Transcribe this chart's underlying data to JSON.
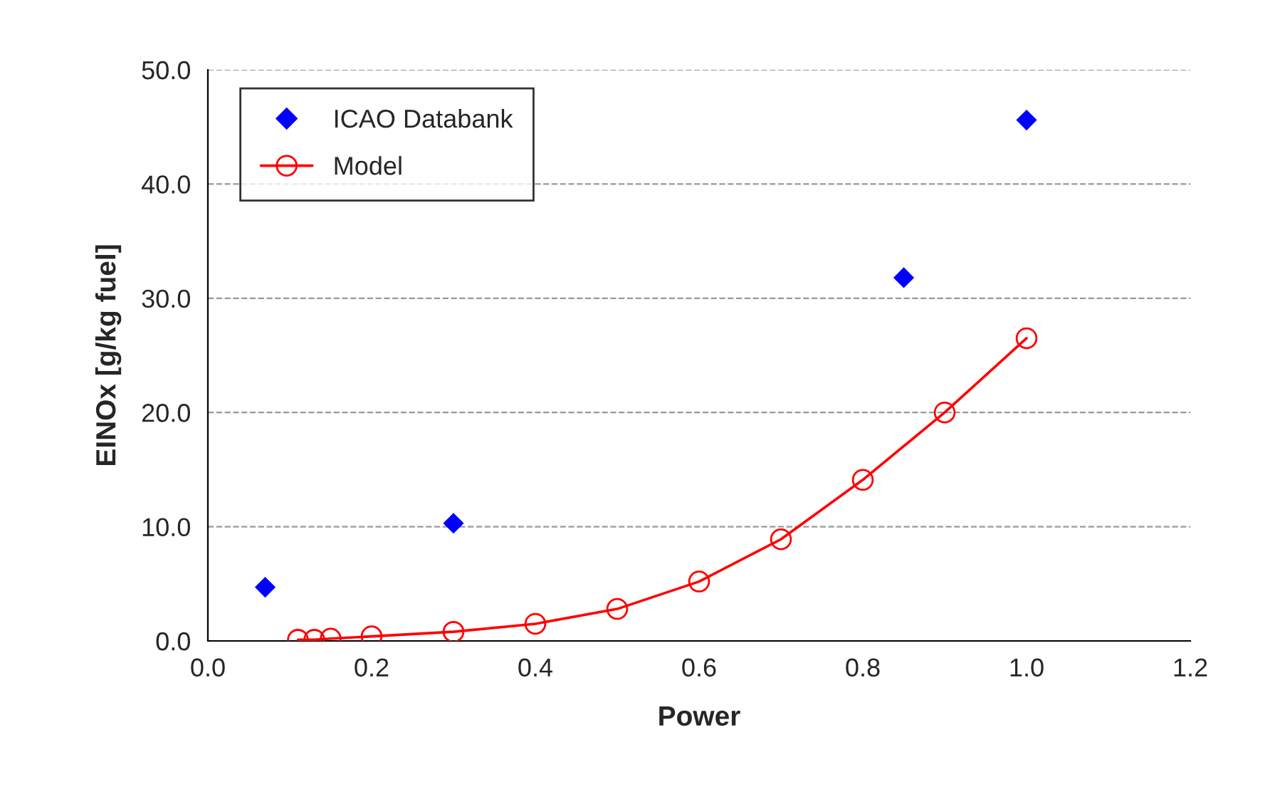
{
  "chart_data": {
    "type": "scatter",
    "xlabel": "Power",
    "ylabel": "EINOx [g/kg fuel]",
    "xlim": [
      0,
      1.2
    ],
    "ylim": [
      0,
      50
    ],
    "xticks": [
      {
        "value": 0,
        "label": "0.0"
      },
      {
        "value": 0.2,
        "label": "0.2"
      },
      {
        "value": 0.4,
        "label": "0.4"
      },
      {
        "value": 0.6,
        "label": "0.6"
      },
      {
        "value": 0.8,
        "label": "0.8"
      },
      {
        "value": 1.0,
        "label": "1.0"
      },
      {
        "value": 1.2,
        "label": "1.2"
      }
    ],
    "yticks": [
      {
        "value": 0,
        "label": "0.0"
      },
      {
        "value": 10,
        "label": "10.0"
      },
      {
        "value": 20,
        "label": "20.0"
      },
      {
        "value": 30,
        "label": "30.0"
      },
      {
        "value": 40,
        "label": "40.0"
      },
      {
        "value": 50,
        "label": "50.0"
      }
    ],
    "grid": "y",
    "legend": "top left",
    "series": [
      {
        "name": "ICAO Databank",
        "marker": "diamond",
        "color": "#0000ff",
        "x": [
          0.07,
          0.3,
          0.85,
          1.0
        ],
        "values": [
          4.7,
          10.3,
          31.8,
          45.6
        ]
      },
      {
        "name": "Model",
        "type": "line",
        "marker": "circle",
        "line_style": "solid",
        "color": "#ff0000",
        "x": [
          0.11,
          0.13,
          0.15,
          0.2,
          0.3,
          0.4,
          0.5,
          0.6,
          0.7,
          0.8,
          0.9,
          1.0
        ],
        "values": [
          0.1,
          0.1,
          0.2,
          0.4,
          0.8,
          1.5,
          2.8,
          5.2,
          8.9,
          14.1,
          20.0,
          26.5
        ]
      }
    ]
  }
}
